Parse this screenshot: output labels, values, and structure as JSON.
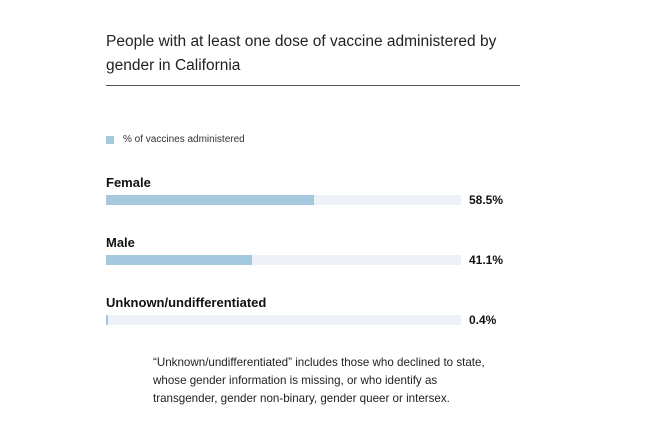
{
  "title": "People with at least one dose of vaccine administered by gender in California",
  "legend": {
    "label": "% of vaccines administered",
    "color": "#a4c8de"
  },
  "track_color": "#eef1f8",
  "chart_data": {
    "type": "bar",
    "orientation": "horizontal",
    "title": "People with at least one dose of vaccine administered by gender in California",
    "categories": [
      "Female",
      "Male",
      "Unknown/undifferentiated"
    ],
    "series": [
      {
        "name": "% of vaccines administered",
        "values": [
          58.5,
          41.1,
          0.4
        ]
      }
    ],
    "value_labels": [
      "58.5%",
      "41.1%",
      "0.4%"
    ],
    "xlim": [
      0,
      100
    ],
    "grid": false,
    "legend_position": "top-left"
  },
  "footnote": "“Unknown/undifferentiated” includes those who declined to state, whose gender information is missing, or who identify as transgender, gender non-binary, gender queer or intersex."
}
